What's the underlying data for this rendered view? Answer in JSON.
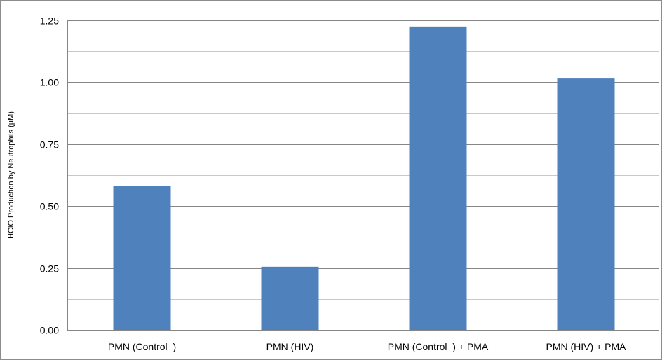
{
  "chart_data": {
    "type": "bar",
    "categories": [
      "PMN (Control  )",
      "PMN (HIV)",
      "PMN (Control  ) + PMA",
      "PMN (HIV) + PMA"
    ],
    "values": [
      0.58,
      0.255,
      1.225,
      1.015
    ],
    "ylabel": "HClO Production by Neutrophils (µM)",
    "xlabel": "",
    "ylim": [
      0,
      1.25
    ],
    "yticks": [
      "0.00",
      "0.25",
      "0.50",
      "0.75",
      "1.00",
      "1.25"
    ],
    "grid": true,
    "bar_color": "#4f81bd"
  }
}
